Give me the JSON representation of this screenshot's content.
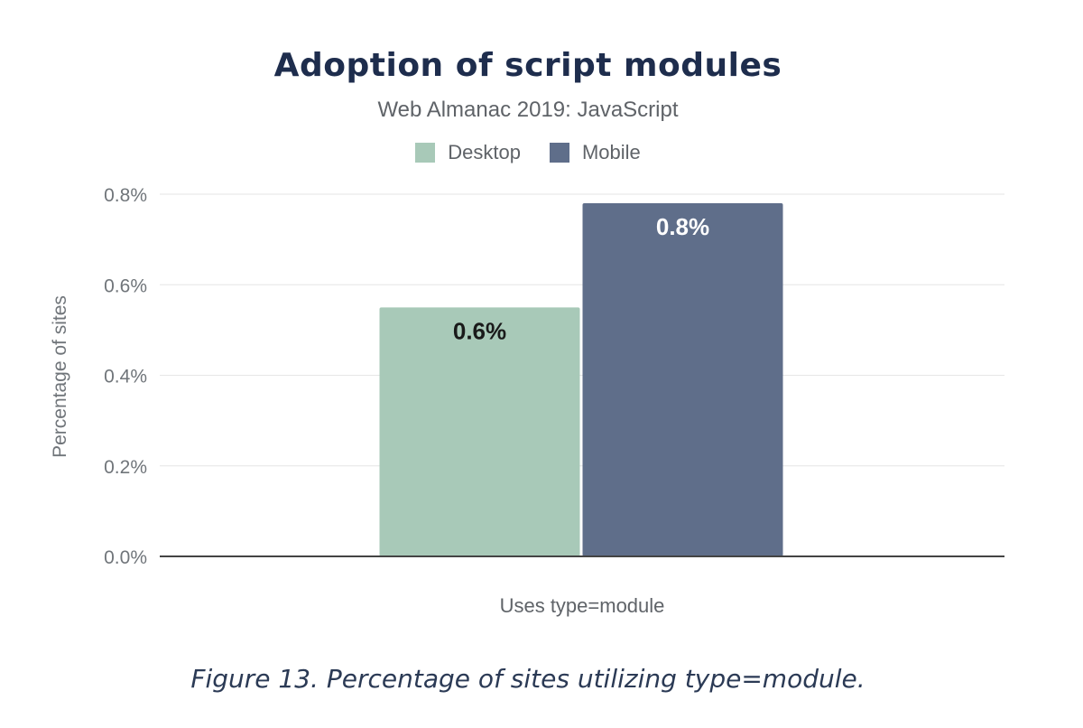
{
  "chart_data": {
    "type": "bar",
    "title": "Adoption of script modules",
    "subtitle": "Web Almanac 2019: JavaScript",
    "xlabel": "Uses type=module",
    "ylabel": "Percentage of sites",
    "categories": [
      "Uses type=module"
    ],
    "series": [
      {
        "name": "Desktop",
        "values": [
          0.55
        ],
        "data_label": "0.6%",
        "color": "#a8c9b8"
      },
      {
        "name": "Mobile",
        "values": [
          0.78
        ],
        "data_label": "0.8%",
        "color": "#5f6e8a"
      }
    ],
    "ylim": [
      0,
      0.8
    ],
    "yticks": [
      {
        "value": 0.8,
        "label": "0.8%"
      },
      {
        "value": 0.6,
        "label": "0.6%"
      },
      {
        "value": 0.4,
        "label": "0.4%"
      },
      {
        "value": 0.2,
        "label": "0.2%"
      },
      {
        "value": 0.0,
        "label": "0.0%"
      }
    ],
    "grid": true,
    "legend_position": "top-center"
  },
  "caption": "Figure 13. Percentage of sites utilizing type=module."
}
